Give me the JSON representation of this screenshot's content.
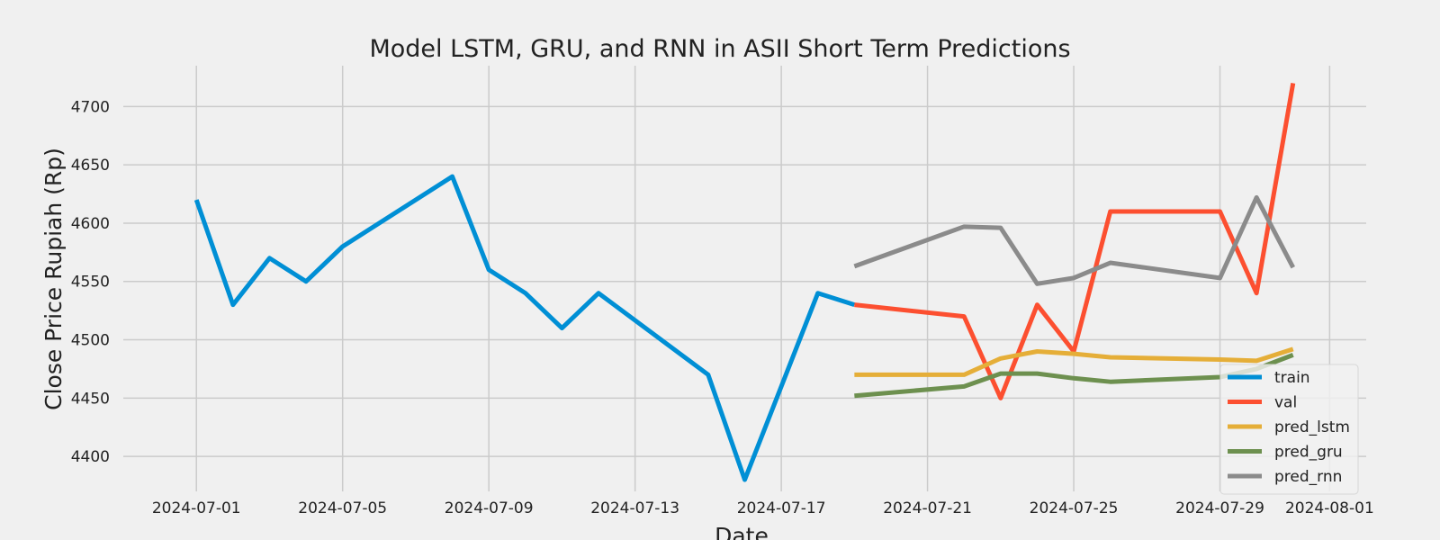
{
  "chart_data": {
    "type": "line",
    "title": "Model LSTM, GRU, and RNN in ASII Short Term Predictions",
    "xlabel": "Date",
    "ylabel": "Close Price Rupiah (Rp)",
    "xlim": [
      "2024-06-29",
      "2024-08-02"
    ],
    "ylim": [
      4370,
      4735
    ],
    "grid": true,
    "legend_position": "bottom-right",
    "x_ticks": [
      "2024-07-01",
      "2024-07-05",
      "2024-07-09",
      "2024-07-13",
      "2024-07-17",
      "2024-07-21",
      "2024-07-25",
      "2024-07-29",
      "2024-08-01"
    ],
    "y_ticks": [
      4400,
      4450,
      4500,
      4550,
      4600,
      4650,
      4700
    ],
    "series": [
      {
        "name": "train",
        "color": "#008fd5",
        "points": [
          {
            "x": "2024-07-01",
            "y": 4620
          },
          {
            "x": "2024-07-02",
            "y": 4530
          },
          {
            "x": "2024-07-03",
            "y": 4570
          },
          {
            "x": "2024-07-04",
            "y": 4550
          },
          {
            "x": "2024-07-05",
            "y": 4580
          },
          {
            "x": "2024-07-08",
            "y": 4640
          },
          {
            "x": "2024-07-09",
            "y": 4560
          },
          {
            "x": "2024-07-10",
            "y": 4540
          },
          {
            "x": "2024-07-11",
            "y": 4510
          },
          {
            "x": "2024-07-12",
            "y": 4540
          },
          {
            "x": "2024-07-15",
            "y": 4470
          },
          {
            "x": "2024-07-16",
            "y": 4380
          },
          {
            "x": "2024-07-18",
            "y": 4540
          },
          {
            "x": "2024-07-19",
            "y": 4530
          }
        ]
      },
      {
        "name": "val",
        "color": "#fc4f30",
        "points": [
          {
            "x": "2024-07-19",
            "y": 4530
          },
          {
            "x": "2024-07-22",
            "y": 4520
          },
          {
            "x": "2024-07-23",
            "y": 4450
          },
          {
            "x": "2024-07-24",
            "y": 4530
          },
          {
            "x": "2024-07-25",
            "y": 4490
          },
          {
            "x": "2024-07-26",
            "y": 4610
          },
          {
            "x": "2024-07-29",
            "y": 4610
          },
          {
            "x": "2024-07-30",
            "y": 4540
          },
          {
            "x": "2024-07-31",
            "y": 4720
          }
        ]
      },
      {
        "name": "pred_lstm",
        "color": "#e5ae38",
        "points": [
          {
            "x": "2024-07-19",
            "y": 4470
          },
          {
            "x": "2024-07-22",
            "y": 4470
          },
          {
            "x": "2024-07-23",
            "y": 4484
          },
          {
            "x": "2024-07-24",
            "y": 4490
          },
          {
            "x": "2024-07-25",
            "y": 4488
          },
          {
            "x": "2024-07-26",
            "y": 4485
          },
          {
            "x": "2024-07-29",
            "y": 4483
          },
          {
            "x": "2024-07-30",
            "y": 4482
          },
          {
            "x": "2024-07-31",
            "y": 4492
          }
        ]
      },
      {
        "name": "pred_gru",
        "color": "#6d904f",
        "points": [
          {
            "x": "2024-07-19",
            "y": 4452
          },
          {
            "x": "2024-07-22",
            "y": 4460
          },
          {
            "x": "2024-07-23",
            "y": 4471
          },
          {
            "x": "2024-07-24",
            "y": 4471
          },
          {
            "x": "2024-07-25",
            "y": 4467
          },
          {
            "x": "2024-07-26",
            "y": 4464
          },
          {
            "x": "2024-07-29",
            "y": 4468
          },
          {
            "x": "2024-07-30",
            "y": 4475
          },
          {
            "x": "2024-07-31",
            "y": 4487
          }
        ]
      },
      {
        "name": "pred_rnn",
        "color": "#8b8b8b",
        "points": [
          {
            "x": "2024-07-19",
            "y": 4563
          },
          {
            "x": "2024-07-22",
            "y": 4597
          },
          {
            "x": "2024-07-23",
            "y": 4596
          },
          {
            "x": "2024-07-24",
            "y": 4548
          },
          {
            "x": "2024-07-25",
            "y": 4553
          },
          {
            "x": "2024-07-26",
            "y": 4566
          },
          {
            "x": "2024-07-29",
            "y": 4553
          },
          {
            "x": "2024-07-30",
            "y": 4622
          },
          {
            "x": "2024-07-31",
            "y": 4562
          }
        ]
      }
    ]
  }
}
